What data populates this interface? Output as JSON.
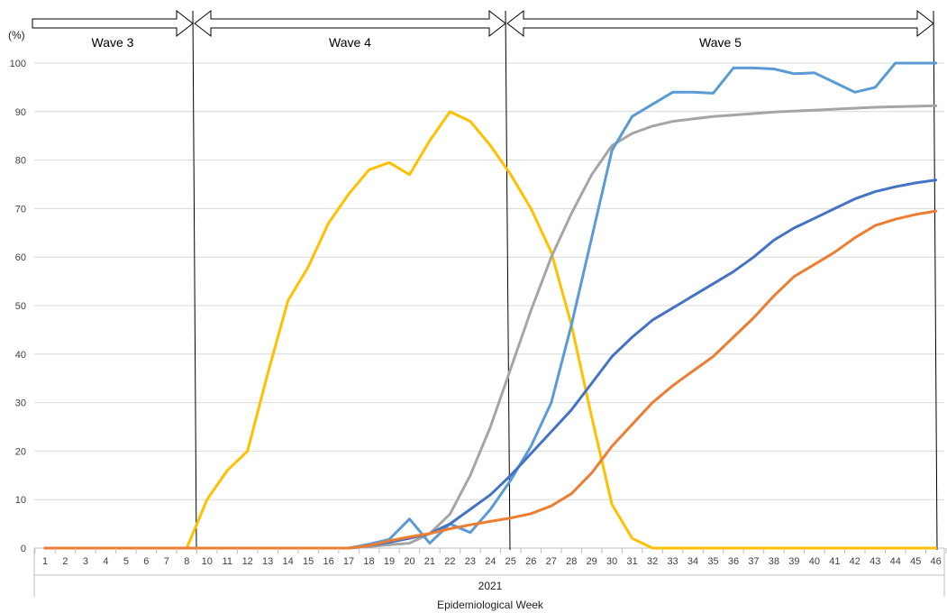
{
  "chart_data": {
    "type": "line",
    "ylabel": "(%)",
    "xlabel": "Epidemiological Week",
    "year_label": "2021",
    "ylim": [
      0,
      100
    ],
    "yticks": [
      "0",
      "10",
      "20",
      "30",
      "40",
      "50",
      "60",
      "70",
      "80",
      "90",
      "100"
    ],
    "grid": true,
    "legend": "none",
    "x": [
      "1",
      "2",
      "3",
      "4",
      "5",
      "6",
      "7",
      "8",
      "10",
      "11",
      "12",
      "13",
      "14",
      "15",
      "16",
      "17",
      "18",
      "19",
      "20",
      "21",
      "22",
      "23",
      "24",
      "25",
      "26",
      "27",
      "28",
      "29",
      "30",
      "31",
      "32",
      "33",
      "34",
      "35",
      "36",
      "37",
      "38",
      "39",
      "40",
      "41",
      "42",
      "43",
      "44",
      "45",
      "46"
    ],
    "waves": [
      {
        "label": "Wave 3",
        "from": "1",
        "to": "8"
      },
      {
        "label": "Wave 4",
        "from": "8",
        "to": "25"
      },
      {
        "label": "Wave 5",
        "from": "25",
        "to": "46"
      }
    ],
    "series": [
      {
        "color": "#FFC000",
        "values": [
          0,
          0,
          0,
          0,
          0,
          0,
          0,
          0,
          10,
          16,
          20,
          36,
          51,
          58,
          67,
          73,
          78,
          79.5,
          77,
          84,
          90,
          88,
          83,
          77,
          70,
          61,
          46,
          27,
          9,
          2,
          0,
          0,
          0,
          0,
          0,
          0,
          0,
          0,
          0,
          0,
          0,
          0,
          0,
          0,
          0
        ]
      },
      {
        "color": "#A5A5A5",
        "values": [
          0,
          0,
          0,
          0,
          0,
          0,
          0,
          0,
          0,
          0,
          0,
          0,
          0,
          0,
          0,
          0,
          0.3,
          0.7,
          1,
          3,
          7,
          15,
          25,
          37,
          49,
          60,
          69,
          77,
          83,
          85.5,
          87,
          88,
          88.5,
          89,
          89.3,
          89.6,
          89.9,
          90.1,
          90.3,
          90.5,
          90.7,
          90.9,
          91,
          91.1,
          91.2
        ]
      },
      {
        "color": "#5B9BD5",
        "values": [
          0,
          0,
          0,
          0,
          0,
          0,
          0,
          0,
          0,
          0,
          0,
          0,
          0,
          0,
          0,
          0,
          0.8,
          1.8,
          6,
          1,
          5,
          3.2,
          8,
          14,
          21,
          30,
          46,
          64,
          82,
          89,
          91.5,
          94,
          94,
          93.8,
          99,
          99,
          98.8,
          97.8,
          98,
          96,
          94,
          95,
          100,
          100,
          100
        ]
      },
      {
        "color": "#4472C4",
        "values": [
          0,
          0,
          0,
          0,
          0,
          0,
          0,
          0,
          0,
          0,
          0,
          0,
          0,
          0,
          0,
          0,
          0.5,
          1.2,
          2,
          3,
          5,
          8,
          11,
          15,
          19.5,
          24,
          28.5,
          34,
          39.5,
          43.5,
          47,
          49.5,
          52,
          54.5,
          57,
          60,
          63.5,
          66,
          68,
          70,
          72,
          73.5,
          74.5,
          75.3,
          75.9
        ]
      },
      {
        "color": "#ED7D31",
        "values": [
          0,
          0,
          0,
          0,
          0,
          0,
          0,
          0,
          0,
          0,
          0,
          0,
          0,
          0,
          0,
          0,
          0.5,
          1.5,
          2.3,
          3,
          4,
          4.8,
          5.5,
          6.2,
          7.1,
          8.7,
          11.2,
          15.5,
          21,
          25.5,
          30,
          33.5,
          36.5,
          39.5,
          43.5,
          47.5,
          52,
          56,
          58.5,
          61,
          64,
          66.5,
          67.8,
          68.8,
          69.5
        ]
      }
    ]
  }
}
